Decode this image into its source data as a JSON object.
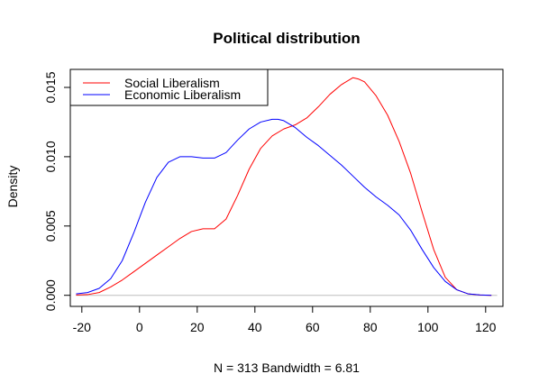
{
  "chart_data": {
    "type": "line",
    "title": "Political distribution",
    "xlabel": "N = 313   Bandwidth = 6.81",
    "ylabel": "Density",
    "xlim": [
      -24,
      126
    ],
    "ylim": [
      -0.0008,
      0.0163
    ],
    "x_ticks": [
      -20,
      0,
      20,
      40,
      60,
      80,
      100,
      120
    ],
    "x_tick_labels": [
      "-20",
      "0",
      "20",
      "40",
      "60",
      "80",
      "100",
      "120"
    ],
    "y_ticks": [
      0.0,
      0.005,
      0.01,
      0.015
    ],
    "y_tick_labels": [
      "0.000",
      "0.005",
      "0.010",
      "0.015"
    ],
    "zero_line_color": "#bebebe",
    "legend_position": "top-left",
    "series": [
      {
        "name": "Social Liberalism",
        "color": "#ff0000",
        "x": [
          -22,
          -18,
          -14,
          -10,
          -6,
          -2,
          2,
          6,
          10,
          14,
          18,
          22,
          26,
          30,
          34,
          38,
          42,
          46,
          50,
          54,
          58,
          62,
          66,
          70,
          74,
          76,
          78,
          82,
          86,
          90,
          94,
          98,
          102,
          106,
          110,
          114,
          118,
          122
        ],
        "y": [
          2e-05,
          5e-05,
          0.0002,
          0.0006,
          0.0011,
          0.0017,
          0.0023,
          0.0029,
          0.0035,
          0.0041,
          0.0046,
          0.0048,
          0.0048,
          0.0055,
          0.0072,
          0.0091,
          0.0106,
          0.0115,
          0.012,
          0.0123,
          0.0128,
          0.0136,
          0.0145,
          0.0152,
          0.0157,
          0.0156,
          0.0154,
          0.0144,
          0.013,
          0.0111,
          0.0088,
          0.006,
          0.0033,
          0.0013,
          0.0004,
          0.0001,
          2e-05,
          0.0
        ]
      },
      {
        "name": "Economic Liberalism",
        "color": "#0000ff",
        "x": [
          -22,
          -18,
          -14,
          -10,
          -6,
          -2,
          2,
          6,
          10,
          14,
          18,
          22,
          26,
          30,
          34,
          38,
          42,
          46,
          48,
          50,
          54,
          58,
          62,
          66,
          70,
          74,
          78,
          82,
          86,
          90,
          94,
          98,
          102,
          106,
          110,
          114,
          118,
          122
        ],
        "y": [
          0.0001,
          0.0002,
          0.0005,
          0.0012,
          0.0025,
          0.0045,
          0.0067,
          0.0085,
          0.0096,
          0.01,
          0.01,
          0.0099,
          0.0099,
          0.0103,
          0.0112,
          0.012,
          0.0125,
          0.0127,
          0.0127,
          0.0126,
          0.0121,
          0.0114,
          0.0108,
          0.0101,
          0.0094,
          0.0086,
          0.0078,
          0.0071,
          0.0065,
          0.0058,
          0.0047,
          0.0033,
          0.002,
          0.001,
          0.0004,
          0.0001,
          3e-05,
          0.0
        ]
      }
    ]
  }
}
